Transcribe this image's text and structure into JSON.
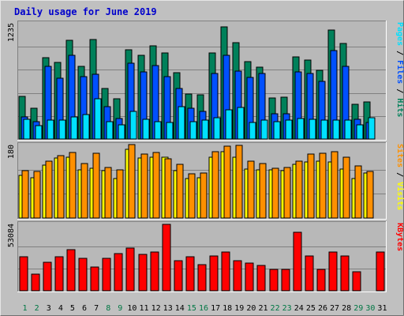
{
  "chart_data": {
    "type": "bar",
    "title": "Daily usage for June 2019",
    "categories": [
      "1",
      "2",
      "3",
      "4",
      "5",
      "6",
      "7",
      "8",
      "9",
      "10",
      "11",
      "12",
      "13",
      "14",
      "15",
      "16",
      "17",
      "18",
      "19",
      "20",
      "21",
      "22",
      "23",
      "24",
      "25",
      "26",
      "27",
      "28",
      "29",
      "30",
      "31"
    ],
    "weekend_days": [
      "1",
      "2",
      "8",
      "9",
      "15",
      "16",
      "22",
      "23",
      "29",
      "30"
    ],
    "colors": {
      "background": "#c0c0c0",
      "plot": "#b8b8b8",
      "title": "#0000cc",
      "weekday_label": "#000000",
      "weekend_label": "#007744",
      "hits": "#00805a",
      "files": "#0050ff",
      "pages": "#00e0ff",
      "visits": "#ffff00",
      "sites": "#ff9000",
      "kbytes": "#ff0000"
    },
    "panels": [
      {
        "id": "usage",
        "ymax_label": "1235",
        "ylim": [
          0,
          1235
        ],
        "side_labels": [
          {
            "text": "Pages",
            "color": "#00e0ff"
          },
          {
            "text": " / ",
            "color": "#000000"
          },
          {
            "text": "Files",
            "color": "#0050ff"
          },
          {
            "text": " / ",
            "color": "#000000"
          },
          {
            "text": "Hits",
            "color": "#00805a"
          }
        ],
        "series": [
          {
            "name": "Hits",
            "color": "#00805a",
            "values": [
              460,
              330,
              870,
              820,
              1060,
              780,
              1070,
              540,
              430,
              960,
              900,
              1000,
              920,
              710,
              480,
              470,
              920,
              1200,
              1030,
              830,
              770,
              440,
              450,
              880,
              850,
              740,
              1170,
              1020,
              370,
              400,
              null
            ]
          },
          {
            "name": "Files",
            "color": "#0050ff",
            "values": [
              240,
              190,
              780,
              650,
              900,
              670,
              690,
              350,
              220,
              810,
              720,
              790,
              670,
              540,
              330,
              300,
              700,
              900,
              730,
              660,
              700,
              270,
              270,
              720,
              700,
              620,
              950,
              780,
              210,
              180,
              null
            ]
          },
          {
            "name": "Pages",
            "color": "#00e0ff",
            "values": [
              210,
              140,
              200,
              200,
              240,
              260,
              430,
              190,
              150,
              300,
              210,
              190,
              180,
              350,
              190,
              200,
              230,
              310,
              340,
              180,
              200,
              190,
              200,
              220,
              210,
              200,
              200,
              200,
              150,
              230,
              null
            ]
          }
        ]
      },
      {
        "id": "visits",
        "ymax_label": "180",
        "ylim": [
          0,
          180
        ],
        "side_labels": [
          {
            "text": "Sites",
            "color": "#ff9000"
          },
          {
            "text": " / ",
            "color": "#000000"
          },
          {
            "text": "Visits",
            "color": "#ffff00"
          }
        ],
        "series": [
          {
            "name": "Visits",
            "color": "#ffff00",
            "values": [
              105,
              100,
              132,
              148,
              150,
              120,
              124,
              118,
              98,
              170,
              148,
              150,
              150,
              118,
              98,
              100,
              150,
              165,
              150,
              122,
              120,
              120,
              118,
              133,
              138,
              140,
              138,
              122,
              98,
              112,
              null
            ]
          },
          {
            "name": "Sites",
            "color": "#ff9000",
            "values": [
              118,
              115,
              140,
              155,
              162,
              135,
              160,
              126,
              120,
              182,
              158,
              162,
              146,
              134,
              110,
              112,
              165,
              178,
              180,
              140,
              135,
              124,
              126,
              140,
              158,
              160,
              165,
              150,
              130,
              115,
              null
            ]
          }
        ]
      },
      {
        "id": "kbytes",
        "ymax_label": "53084",
        "ylim": [
          0,
          53084
        ],
        "side_labels": [
          {
            "text": "KBytes",
            "color": "#ff0000"
          }
        ],
        "series": [
          {
            "name": "KBytes",
            "color": "#ff0000",
            "values": [
              27000,
              13000,
              23000,
              27000,
              33000,
              26000,
              19000,
              26000,
              30000,
              34000,
              29000,
              31000,
              53084,
              24000,
              27000,
              21000,
              28000,
              31000,
              24000,
              22000,
              20000,
              17000,
              17000,
              47000,
              28000,
              17000,
              31000,
              28000,
              15000,
              null,
              31000
            ]
          }
        ]
      }
    ]
  }
}
